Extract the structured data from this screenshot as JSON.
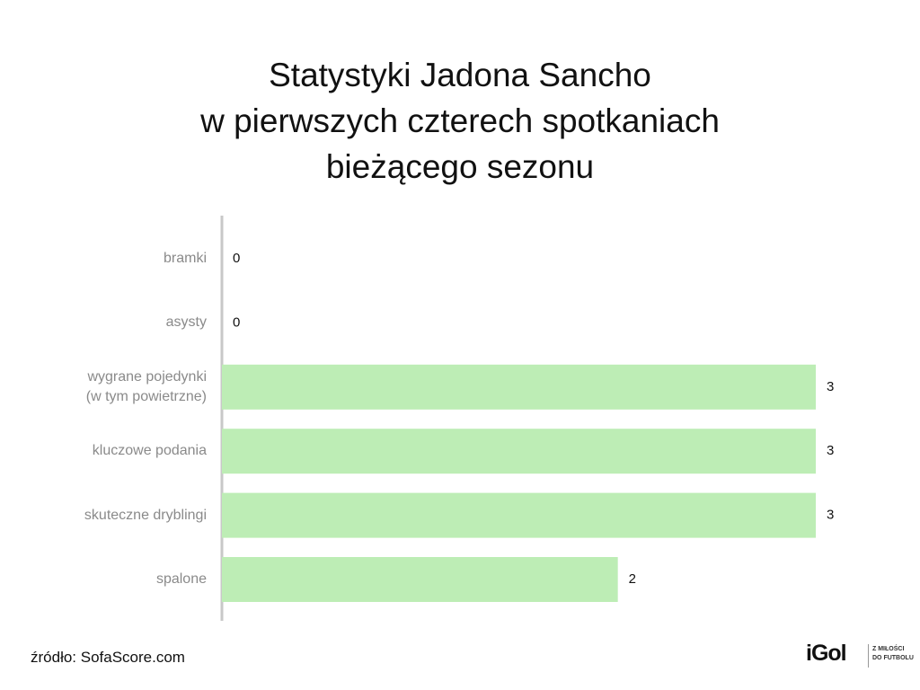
{
  "chart_data": {
    "type": "hbar",
    "title": "Statystyki Jadona Sancho\nw pierwszych czterech spotkaniach\nbieżącego sezonu",
    "categories": [
      "bramki",
      "asysty",
      "wygrane pojedynki\n(w tym powietrzne)",
      "kluczowe podania",
      "skuteczne dryblingi",
      "spalone"
    ],
    "values": [
      0,
      0,
      3,
      3,
      3,
      2
    ],
    "color": "#bdedb5",
    "xlim": [
      0,
      3
    ],
    "source": "źródło: SofaScore.com"
  },
  "logo": {
    "name": "iGol",
    "tagline": "Z MIŁOŚCI\nDO FUTBOLU"
  }
}
